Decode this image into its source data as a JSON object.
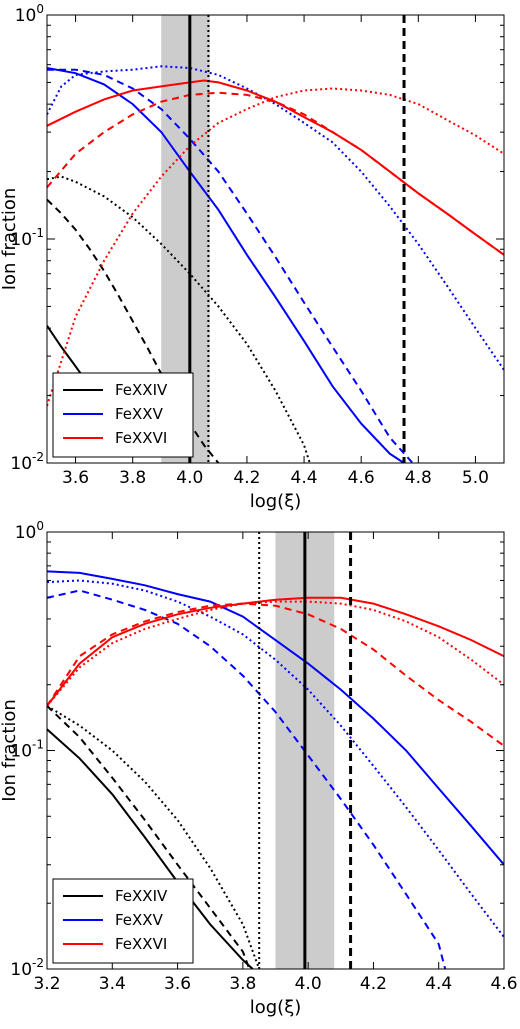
{
  "chart_data": [
    {
      "type": "line",
      "xlabel": "log(ξ)",
      "ylabel": "Ion fraction",
      "xlim": [
        3.5,
        5.1
      ],
      "ylim": [
        0.01,
        1
      ],
      "yscale": "log",
      "xticks": [
        "3.6",
        "3.8",
        "4.0",
        "4.2",
        "4.4",
        "4.6",
        "4.8",
        "5.0"
      ],
      "xtick_values": [
        3.6,
        3.8,
        4.0,
        4.2,
        4.4,
        4.6,
        4.8,
        5.0
      ],
      "yticks": [
        {
          "base": "10",
          "exp": "0",
          "value": 1
        },
        {
          "base": "10",
          "exp": "-1",
          "value": 0.1
        },
        {
          "base": "10",
          "exp": "-2",
          "value": 0.01
        }
      ],
      "legend": {
        "position": "lower-left",
        "entries": [
          {
            "label": "FeXXIV",
            "color": "#000000"
          },
          {
            "label": "FeXXV",
            "color": "#0000ff"
          },
          {
            "label": "FeXXVI",
            "color": "#ff0000"
          }
        ]
      },
      "shaded_band": {
        "x0": 3.9,
        "x1": 4.07,
        "color": "#cccccc"
      },
      "vlines": [
        {
          "x": 4.0,
          "style": "solid"
        },
        {
          "x": 4.065,
          "style": "dotted"
        },
        {
          "x": 4.75,
          "style": "dashed"
        }
      ],
      "series": [
        {
          "ion": "FeXXIV",
          "style": "solid",
          "color": "#000000",
          "x": [
            3.5,
            3.55,
            3.6,
            3.65,
            3.7
          ],
          "y": [
            0.041,
            0.033,
            0.027,
            0.022,
            0.018
          ]
        },
        {
          "ion": "FeXXIV",
          "style": "dashed",
          "color": "#000000",
          "x": [
            3.5,
            3.55,
            3.6,
            3.65,
            3.7,
            3.75,
            3.8,
            3.85,
            3.9,
            3.95,
            4.0,
            4.05,
            4.1
          ],
          "y": [
            0.15,
            0.13,
            0.11,
            0.09,
            0.072,
            0.056,
            0.043,
            0.033,
            0.025,
            0.019,
            0.015,
            0.012,
            0.01
          ]
        },
        {
          "ion": "FeXXIV",
          "style": "dotted",
          "color": "#000000",
          "x": [
            3.5,
            3.55,
            3.6,
            3.7,
            3.8,
            3.9,
            4.0,
            4.1,
            4.2,
            4.3,
            4.4,
            4.42
          ],
          "y": [
            0.185,
            0.19,
            0.18,
            0.155,
            0.125,
            0.095,
            0.07,
            0.05,
            0.034,
            0.021,
            0.012,
            0.01
          ]
        },
        {
          "ion": "FeXXV",
          "style": "solid",
          "color": "#0000ff",
          "x": [
            3.5,
            3.6,
            3.7,
            3.8,
            3.9,
            4.0,
            4.1,
            4.2,
            4.3,
            4.4,
            4.5,
            4.6,
            4.7,
            4.75
          ],
          "y": [
            0.58,
            0.55,
            0.49,
            0.4,
            0.3,
            0.2,
            0.135,
            0.085,
            0.055,
            0.035,
            0.022,
            0.015,
            0.011,
            0.01
          ]
        },
        {
          "ion": "FeXXV",
          "style": "dashed",
          "color": "#0000ff",
          "x": [
            3.5,
            3.6,
            3.7,
            3.8,
            3.9,
            4.0,
            4.1,
            4.2,
            4.3,
            4.4,
            4.5,
            4.6,
            4.7,
            4.78
          ],
          "y": [
            0.57,
            0.57,
            0.54,
            0.47,
            0.38,
            0.28,
            0.2,
            0.13,
            0.083,
            0.052,
            0.033,
            0.021,
            0.013,
            0.01
          ]
        },
        {
          "ion": "FeXXV",
          "style": "dotted",
          "color": "#0000ff",
          "x": [
            3.5,
            3.55,
            3.6,
            3.7,
            3.8,
            3.9,
            4.0,
            4.1,
            4.2,
            4.3,
            4.4,
            4.5,
            4.6,
            4.7,
            4.8,
            4.9,
            5.0,
            5.1
          ],
          "y": [
            0.36,
            0.48,
            0.54,
            0.56,
            0.57,
            0.59,
            0.58,
            0.54,
            0.47,
            0.4,
            0.33,
            0.27,
            0.2,
            0.14,
            0.095,
            0.062,
            0.04,
            0.026
          ]
        },
        {
          "ion": "FeXXVI",
          "style": "solid",
          "color": "#ff0000",
          "x": [
            3.5,
            3.6,
            3.7,
            3.8,
            3.9,
            4.0,
            4.05,
            4.1,
            4.2,
            4.3,
            4.4,
            4.5,
            4.6,
            4.7,
            4.8,
            4.9,
            5.0,
            5.1
          ],
          "y": [
            0.32,
            0.37,
            0.42,
            0.46,
            0.48,
            0.5,
            0.51,
            0.5,
            0.46,
            0.41,
            0.35,
            0.3,
            0.25,
            0.2,
            0.16,
            0.13,
            0.105,
            0.085
          ]
        },
        {
          "ion": "FeXXVI",
          "style": "dashed",
          "color": "#ff0000",
          "x": [
            3.5,
            3.6,
            3.7,
            3.8,
            3.9,
            4.0,
            4.1,
            4.2,
            4.3,
            4.4,
            4.5,
            4.6,
            4.7,
            4.8,
            4.9,
            5.0,
            5.1
          ],
          "y": [
            0.17,
            0.24,
            0.3,
            0.36,
            0.41,
            0.44,
            0.45,
            0.44,
            0.41,
            0.36,
            0.3,
            0.25,
            0.2,
            0.16,
            0.13,
            0.105,
            0.085
          ]
        },
        {
          "ion": "FeXXVI",
          "style": "dotted",
          "color": "#ff0000",
          "x": [
            3.5,
            3.6,
            3.7,
            3.8,
            3.9,
            4.0,
            4.1,
            4.2,
            4.3,
            4.4,
            4.5,
            4.6,
            4.7,
            4.8,
            4.9,
            5.0,
            5.1
          ],
          "y": [
            0.018,
            0.045,
            0.08,
            0.13,
            0.19,
            0.26,
            0.33,
            0.38,
            0.43,
            0.46,
            0.47,
            0.46,
            0.44,
            0.4,
            0.34,
            0.29,
            0.24
          ]
        }
      ]
    },
    {
      "type": "line",
      "xlabel": "log(ξ)",
      "ylabel": "Ion fraction",
      "xlim": [
        3.2,
        4.6
      ],
      "ylim": [
        0.01,
        1
      ],
      "yscale": "log",
      "xticks": [
        "3.2",
        "3.4",
        "3.6",
        "3.8",
        "4.0",
        "4.2",
        "4.4",
        "4.6"
      ],
      "xtick_values": [
        3.2,
        3.4,
        3.6,
        3.8,
        4.0,
        4.2,
        4.4,
        4.6
      ],
      "yticks": [
        {
          "base": "10",
          "exp": "0",
          "value": 1
        },
        {
          "base": "10",
          "exp": "-1",
          "value": 0.1
        },
        {
          "base": "10",
          "exp": "-2",
          "value": 0.01
        }
      ],
      "legend": {
        "position": "lower-left",
        "entries": [
          {
            "label": "FeXXIV",
            "color": "#000000"
          },
          {
            "label": "FeXXV",
            "color": "#0000ff"
          },
          {
            "label": "FeXXVI",
            "color": "#ff0000"
          }
        ]
      },
      "shaded_band": {
        "x0": 3.9,
        "x1": 4.08,
        "color": "#cccccc"
      },
      "vlines": [
        {
          "x": 3.85,
          "style": "dotted"
        },
        {
          "x": 3.99,
          "style": "solid"
        },
        {
          "x": 4.13,
          "style": "dashed"
        }
      ],
      "series": [
        {
          "ion": "FeXXIV",
          "style": "solid",
          "color": "#000000",
          "x": [
            3.2,
            3.3,
            3.4,
            3.5,
            3.6,
            3.7,
            3.8,
            3.83
          ],
          "y": [
            0.125,
            0.092,
            0.063,
            0.04,
            0.025,
            0.016,
            0.011,
            0.01
          ]
        },
        {
          "ion": "FeXXIV",
          "style": "dashed",
          "color": "#000000",
          "x": [
            3.2,
            3.3,
            3.4,
            3.5,
            3.6,
            3.7,
            3.8,
            3.82
          ],
          "y": [
            0.16,
            0.115,
            0.075,
            0.048,
            0.03,
            0.019,
            0.012,
            0.01
          ]
        },
        {
          "ion": "FeXXIV",
          "style": "dotted",
          "color": "#000000",
          "x": [
            3.2,
            3.3,
            3.4,
            3.5,
            3.6,
            3.7,
            3.8,
            3.85
          ],
          "y": [
            0.16,
            0.13,
            0.1,
            0.072,
            0.048,
            0.029,
            0.016,
            0.01
          ]
        },
        {
          "ion": "FeXXV",
          "style": "solid",
          "color": "#0000ff",
          "x": [
            3.2,
            3.3,
            3.4,
            3.5,
            3.6,
            3.7,
            3.8,
            3.9,
            4.0,
            4.1,
            4.2,
            4.3,
            4.4,
            4.5,
            4.6
          ],
          "y": [
            0.66,
            0.65,
            0.61,
            0.57,
            0.52,
            0.48,
            0.41,
            0.32,
            0.25,
            0.19,
            0.14,
            0.1,
            0.067,
            0.045,
            0.03
          ]
        },
        {
          "ion": "FeXXV",
          "style": "dashed",
          "color": "#0000ff",
          "x": [
            3.2,
            3.3,
            3.4,
            3.5,
            3.6,
            3.7,
            3.8,
            3.9,
            4.0,
            4.1,
            4.2,
            4.3,
            4.4,
            4.42
          ],
          "y": [
            0.5,
            0.54,
            0.49,
            0.44,
            0.38,
            0.3,
            0.22,
            0.15,
            0.095,
            0.06,
            0.037,
            0.022,
            0.013,
            0.01
          ]
        },
        {
          "ion": "FeXXV",
          "style": "dotted",
          "color": "#0000ff",
          "x": [
            3.2,
            3.3,
            3.4,
            3.5,
            3.6,
            3.7,
            3.8,
            3.9,
            4.0,
            4.1,
            4.2,
            4.3,
            4.4,
            4.5,
            4.6
          ],
          "y": [
            0.59,
            0.6,
            0.58,
            0.54,
            0.48,
            0.41,
            0.34,
            0.26,
            0.19,
            0.13,
            0.085,
            0.055,
            0.035,
            0.022,
            0.014
          ]
        },
        {
          "ion": "FeXXVI",
          "style": "solid",
          "color": "#ff0000",
          "x": [
            3.2,
            3.3,
            3.4,
            3.5,
            3.6,
            3.7,
            3.8,
            3.9,
            4.0,
            4.1,
            4.2,
            4.3,
            4.4,
            4.5,
            4.6
          ],
          "y": [
            0.16,
            0.25,
            0.33,
            0.38,
            0.42,
            0.45,
            0.47,
            0.49,
            0.5,
            0.5,
            0.47,
            0.42,
            0.37,
            0.32,
            0.27
          ]
        },
        {
          "ion": "FeXXVI",
          "style": "dashed",
          "color": "#ff0000",
          "x": [
            3.2,
            3.3,
            3.4,
            3.5,
            3.6,
            3.7,
            3.8,
            3.9,
            4.0,
            4.1,
            4.2,
            4.3,
            4.4,
            4.5,
            4.6
          ],
          "y": [
            0.16,
            0.27,
            0.34,
            0.39,
            0.43,
            0.46,
            0.47,
            0.46,
            0.42,
            0.36,
            0.29,
            0.22,
            0.17,
            0.135,
            0.105
          ]
        },
        {
          "ion": "FeXXVI",
          "style": "dotted",
          "color": "#ff0000",
          "x": [
            3.2,
            3.3,
            3.4,
            3.5,
            3.6,
            3.7,
            3.8,
            3.9,
            4.0,
            4.1,
            4.2,
            4.3,
            4.4,
            4.5,
            4.6
          ],
          "y": [
            0.16,
            0.24,
            0.31,
            0.36,
            0.4,
            0.44,
            0.47,
            0.48,
            0.48,
            0.47,
            0.44,
            0.39,
            0.33,
            0.26,
            0.2
          ]
        }
      ]
    }
  ]
}
